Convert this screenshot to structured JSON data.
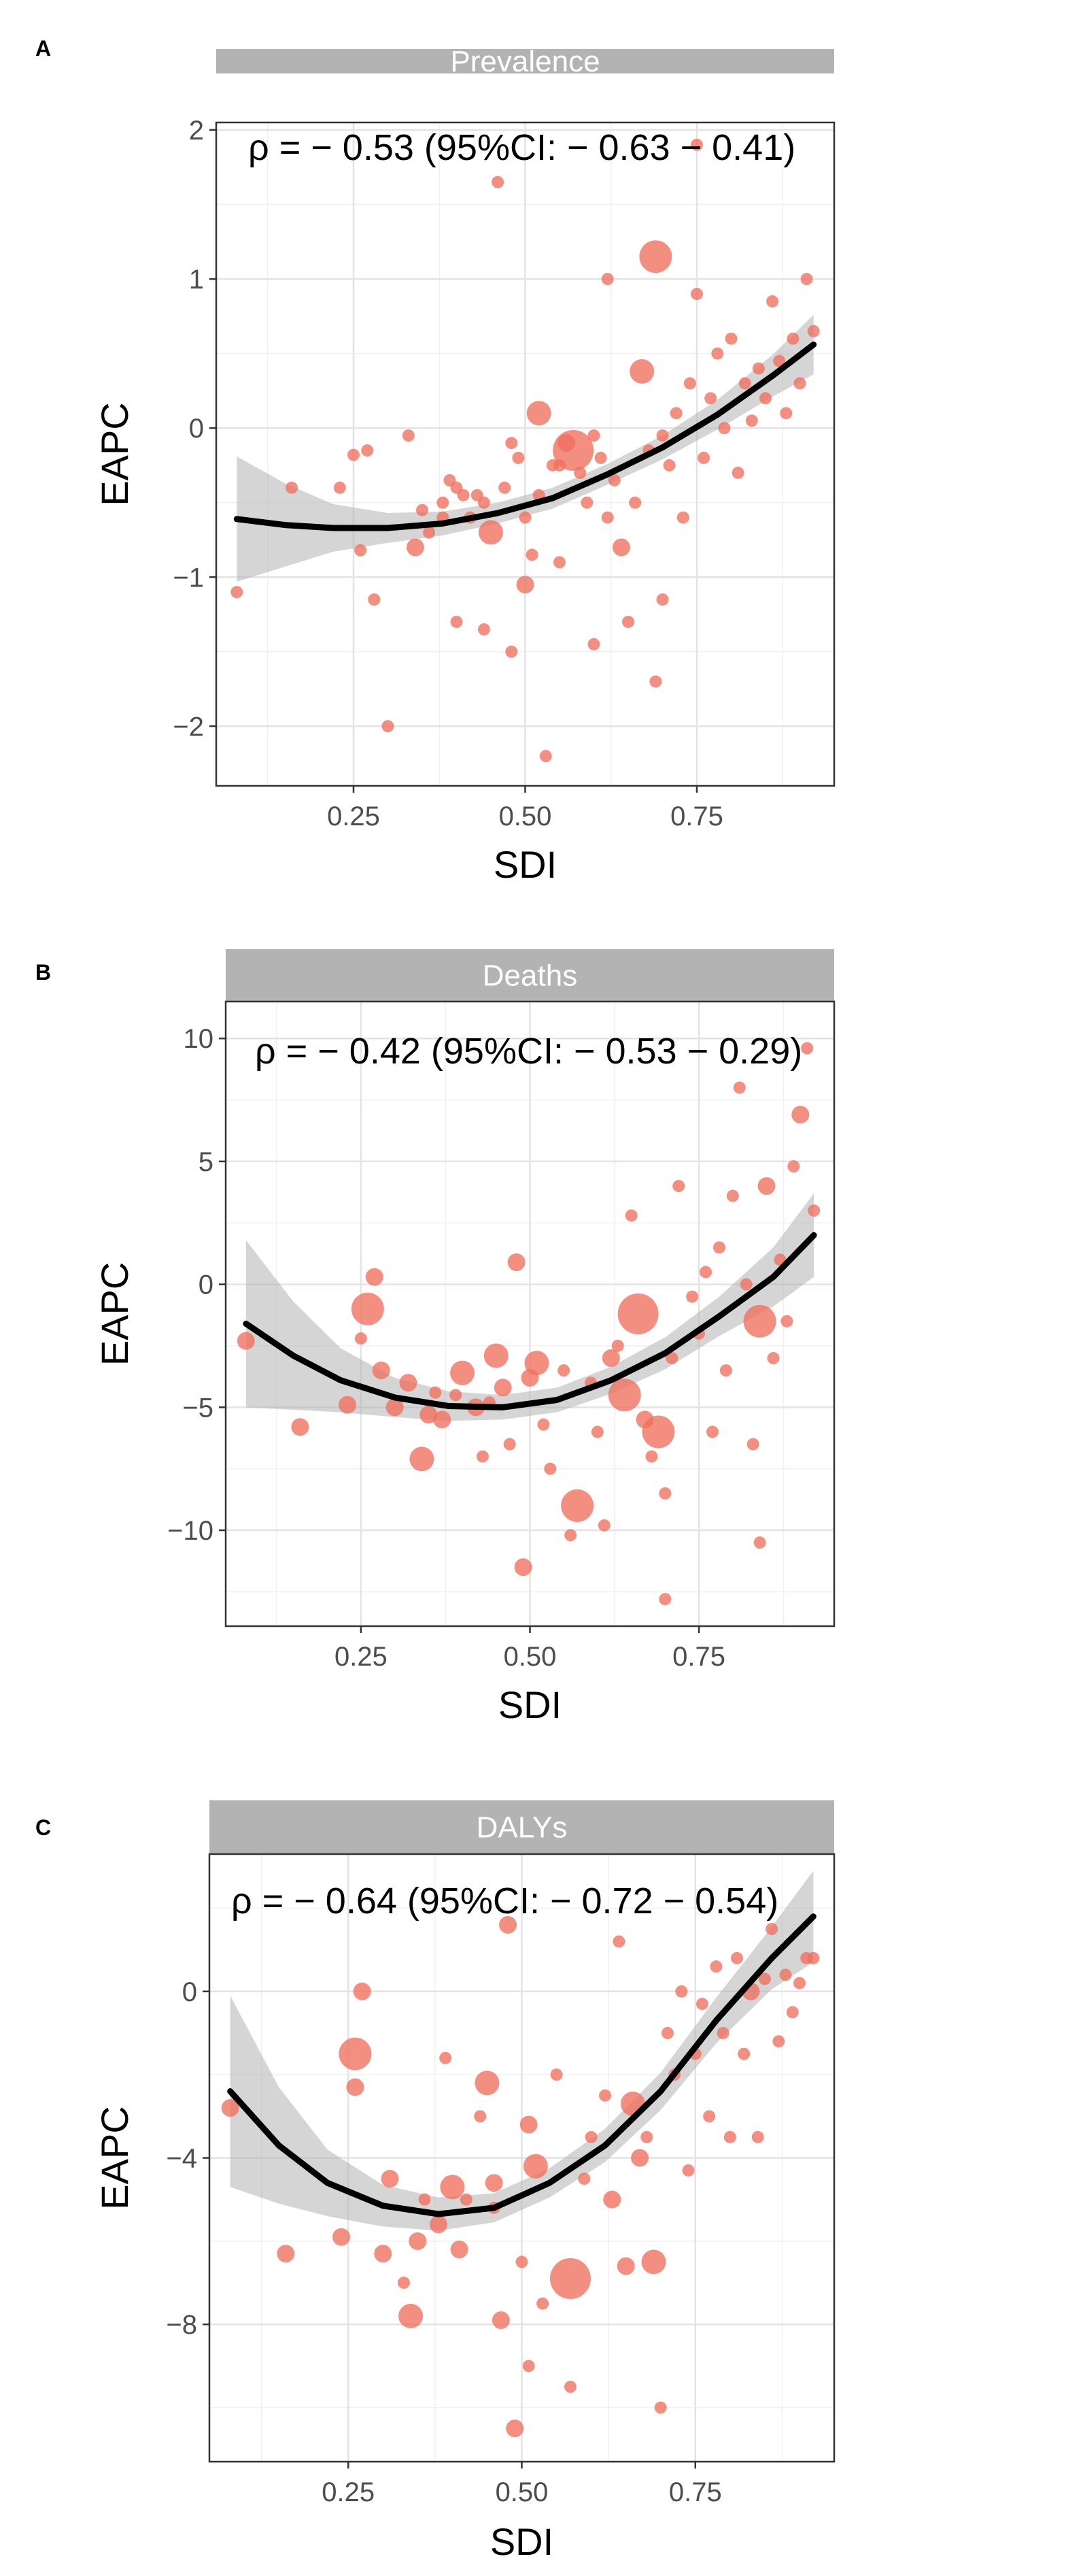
{
  "chart_data": [
    {
      "type": "scatter",
      "panel_label": "A",
      "title": "Prevalence",
      "annotation": "ρ = − 0.53 (95%CI: − 0.63 − 0.41)",
      "xlabel": "SDI",
      "ylabel": "EAPC",
      "xlim": [
        0.05,
        0.95
      ],
      "ylim": [
        -2.4,
        2.05
      ],
      "x_ticks": [
        0.25,
        0.5,
        0.75
      ],
      "x_tick_labels": [
        "0.25",
        "0.50",
        "0.75"
      ],
      "y_ticks": [
        2,
        1,
        0,
        -1,
        -2
      ],
      "y_tick_labels": [
        "2",
        "1",
        "0",
        "−1",
        "−2"
      ],
      "point_color": "#ef6f5e",
      "fit_color": "#000000",
      "band_color": "#b3b3b3",
      "points": [
        [
          0.08,
          -1.1,
          2
        ],
        [
          0.16,
          -0.4,
          2
        ],
        [
          0.23,
          -0.4,
          2
        ],
        [
          0.25,
          -0.18,
          2
        ],
        [
          0.27,
          -0.15,
          2
        ],
        [
          0.26,
          -0.82,
          2
        ],
        [
          0.28,
          -1.15,
          2
        ],
        [
          0.3,
          -2.0,
          2
        ],
        [
          0.33,
          -0.05,
          2
        ],
        [
          0.34,
          -0.8,
          3
        ],
        [
          0.35,
          -0.55,
          2
        ],
        [
          0.36,
          -0.7,
          2
        ],
        [
          0.38,
          -0.5,
          2
        ],
        [
          0.39,
          -0.35,
          2
        ],
        [
          0.4,
          -0.4,
          2
        ],
        [
          0.4,
          -1.3,
          2
        ],
        [
          0.42,
          -0.6,
          2
        ],
        [
          0.43,
          -0.45,
          2
        ],
        [
          0.44,
          -1.35,
          2
        ],
        [
          0.45,
          -0.7,
          4
        ],
        [
          0.46,
          1.65,
          2
        ],
        [
          0.47,
          -0.4,
          2
        ],
        [
          0.48,
          -1.5,
          2
        ],
        [
          0.49,
          -0.2,
          2
        ],
        [
          0.5,
          -1.05,
          3
        ],
        [
          0.5,
          -0.6,
          2
        ],
        [
          0.51,
          -0.85,
          2
        ],
        [
          0.52,
          0.1,
          4
        ],
        [
          0.52,
          -0.45,
          2
        ],
        [
          0.53,
          -2.2,
          2
        ],
        [
          0.54,
          -0.25,
          2
        ],
        [
          0.55,
          -0.9,
          2
        ],
        [
          0.56,
          -0.1,
          3
        ],
        [
          0.57,
          -0.15,
          6
        ],
        [
          0.58,
          -0.3,
          2
        ],
        [
          0.59,
          -0.5,
          2
        ],
        [
          0.6,
          -0.05,
          2
        ],
        [
          0.61,
          -0.2,
          2
        ],
        [
          0.62,
          -0.6,
          2
        ],
        [
          0.63,
          -0.35,
          2
        ],
        [
          0.64,
          -0.8,
          3
        ],
        [
          0.65,
          -1.3,
          2
        ],
        [
          0.66,
          -0.5,
          2
        ],
        [
          0.67,
          0.38,
          4
        ],
        [
          0.68,
          -0.15,
          2
        ],
        [
          0.69,
          1.15,
          5
        ],
        [
          0.7,
          -0.05,
          2
        ],
        [
          0.7,
          -1.15,
          2
        ],
        [
          0.71,
          -0.25,
          2
        ],
        [
          0.72,
          0.1,
          2
        ],
        [
          0.73,
          -0.6,
          2
        ],
        [
          0.74,
          0.3,
          2
        ],
        [
          0.75,
          0.9,
          2
        ],
        [
          0.76,
          -0.2,
          2
        ],
        [
          0.77,
          0.2,
          2
        ],
        [
          0.78,
          0.5,
          2
        ],
        [
          0.79,
          0.0,
          2
        ],
        [
          0.8,
          0.6,
          2
        ],
        [
          0.81,
          -0.3,
          2
        ],
        [
          0.82,
          0.3,
          2
        ],
        [
          0.83,
          0.05,
          2
        ],
        [
          0.84,
          0.4,
          2
        ],
        [
          0.85,
          0.2,
          2
        ],
        [
          0.86,
          0.85,
          2
        ],
        [
          0.87,
          0.45,
          2
        ],
        [
          0.88,
          0.1,
          2
        ],
        [
          0.89,
          0.6,
          2
        ],
        [
          0.9,
          0.3,
          2
        ],
        [
          0.91,
          1.0,
          2
        ],
        [
          0.92,
          0.65,
          2
        ],
        [
          0.75,
          1.9,
          2
        ],
        [
          0.62,
          1.0,
          2
        ],
        [
          0.69,
          -1.7,
          2
        ],
        [
          0.6,
          -1.45,
          2
        ],
        [
          0.55,
          -0.25,
          2
        ],
        [
          0.48,
          -0.1,
          2
        ],
        [
          0.44,
          -0.5,
          2
        ],
        [
          0.41,
          -0.45,
          2
        ],
        [
          0.38,
          -0.6,
          2
        ]
      ],
      "fit_x": [
        0.08,
        0.15,
        0.22,
        0.3,
        0.38,
        0.46,
        0.54,
        0.62,
        0.7,
        0.78,
        0.86,
        0.92
      ],
      "fit_y": [
        -0.61,
        -0.65,
        -0.67,
        -0.67,
        -0.64,
        -0.57,
        -0.47,
        -0.31,
        -0.13,
        0.09,
        0.35,
        0.56
      ],
      "band_width": [
        0.42,
        0.28,
        0.16,
        0.1,
        0.08,
        0.07,
        0.07,
        0.07,
        0.08,
        0.1,
        0.14,
        0.2
      ]
    },
    {
      "type": "scatter",
      "panel_label": "B",
      "title": "Deaths",
      "annotation": "ρ = − 0.42 (95%CI: − 0.53 − 0.29)",
      "xlabel": "SDI",
      "ylabel": "EAPC",
      "xlim": [
        0.05,
        0.95
      ],
      "ylim": [
        -13.9,
        11.5
      ],
      "x_ticks": [
        0.25,
        0.5,
        0.75
      ],
      "x_tick_labels": [
        "0.25",
        "0.50",
        "0.75"
      ],
      "y_ticks": [
        10,
        5,
        0,
        -5,
        -10
      ],
      "y_tick_labels": [
        "10",
        "5",
        "0",
        "−5",
        "−10"
      ],
      "point_color": "#ef6f5e",
      "fit_color": "#000000",
      "band_color": "#b3b3b3",
      "points": [
        [
          0.08,
          -2.3,
          3
        ],
        [
          0.16,
          -5.8,
          3
        ],
        [
          0.23,
          -4.9,
          3
        ],
        [
          0.25,
          -2.2,
          2
        ],
        [
          0.26,
          -1.0,
          5
        ],
        [
          0.27,
          0.3,
          3
        ],
        [
          0.28,
          -3.5,
          3
        ],
        [
          0.3,
          -5.0,
          3
        ],
        [
          0.32,
          -4.0,
          3
        ],
        [
          0.34,
          -7.1,
          4
        ],
        [
          0.35,
          -5.3,
          3
        ],
        [
          0.37,
          -5.5,
          3
        ],
        [
          0.39,
          -4.5,
          2
        ],
        [
          0.4,
          -3.6,
          4
        ],
        [
          0.42,
          -5.0,
          3
        ],
        [
          0.43,
          -7.0,
          2
        ],
        [
          0.45,
          -2.9,
          4
        ],
        [
          0.46,
          -4.2,
          3
        ],
        [
          0.47,
          -6.5,
          2
        ],
        [
          0.48,
          0.9,
          3
        ],
        [
          0.49,
          -11.5,
          3
        ],
        [
          0.5,
          -3.8,
          3
        ],
        [
          0.51,
          -3.2,
          4
        ],
        [
          0.52,
          -5.7,
          2
        ],
        [
          0.53,
          -7.5,
          2
        ],
        [
          0.55,
          -3.5,
          2
        ],
        [
          0.56,
          -10.2,
          2
        ],
        [
          0.57,
          -9.0,
          5
        ],
        [
          0.59,
          -4.0,
          2
        ],
        [
          0.6,
          -6.0,
          2
        ],
        [
          0.62,
          -3.0,
          3
        ],
        [
          0.63,
          -2.5,
          2
        ],
        [
          0.64,
          -4.5,
          5
        ],
        [
          0.65,
          2.8,
          2
        ],
        [
          0.66,
          -1.2,
          6
        ],
        [
          0.67,
          -5.5,
          3
        ],
        [
          0.68,
          -7.0,
          2
        ],
        [
          0.69,
          -6.0,
          5
        ],
        [
          0.7,
          -8.5,
          2
        ],
        [
          0.7,
          -12.8,
          2
        ],
        [
          0.71,
          -3.0,
          2
        ],
        [
          0.72,
          4.0,
          2
        ],
        [
          0.74,
          -0.5,
          2
        ],
        [
          0.75,
          -2.0,
          2
        ],
        [
          0.76,
          0.5,
          2
        ],
        [
          0.77,
          -6.0,
          2
        ],
        [
          0.78,
          1.5,
          2
        ],
        [
          0.79,
          -3.5,
          2
        ],
        [
          0.8,
          3.6,
          2
        ],
        [
          0.81,
          8.0,
          2
        ],
        [
          0.82,
          0.0,
          2
        ],
        [
          0.83,
          -6.5,
          2
        ],
        [
          0.84,
          -1.5,
          5
        ],
        [
          0.85,
          4.0,
          3
        ],
        [
          0.86,
          -3.0,
          2
        ],
        [
          0.87,
          1.0,
          2
        ],
        [
          0.88,
          -1.5,
          2
        ],
        [
          0.89,
          4.8,
          2
        ],
        [
          0.9,
          6.9,
          3
        ],
        [
          0.91,
          9.6,
          2
        ],
        [
          0.92,
          3.0,
          2
        ],
        [
          0.84,
          -10.5,
          2
        ],
        [
          0.61,
          -9.8,
          2
        ],
        [
          0.44,
          -4.8,
          2
        ],
        [
          0.36,
          -4.4,
          2
        ]
      ],
      "fit_x": [
        0.08,
        0.15,
        0.22,
        0.3,
        0.38,
        0.46,
        0.54,
        0.62,
        0.7,
        0.78,
        0.86,
        0.92
      ],
      "fit_y": [
        -1.6,
        -2.9,
        -3.9,
        -4.6,
        -4.95,
        -5.0,
        -4.7,
        -3.9,
        -2.8,
        -1.3,
        0.3,
        2.0
      ],
      "band_width": [
        3.4,
        2.2,
        1.3,
        0.8,
        0.6,
        0.5,
        0.5,
        0.55,
        0.65,
        0.8,
        1.2,
        1.7
      ]
    },
    {
      "type": "scatter",
      "panel_label": "C",
      "title": "DALYs",
      "annotation": "ρ = − 0.64 (95%CI: − 0.72 − 0.54)",
      "xlabel": "SDI",
      "ylabel": "EAPC",
      "xlim": [
        0.05,
        0.95
      ],
      "ylim": [
        -11.3,
        3.3
      ],
      "x_ticks": [
        0.25,
        0.5,
        0.75
      ],
      "x_tick_labels": [
        "0.25",
        "0.50",
        "0.75"
      ],
      "y_ticks": [
        0,
        -4,
        -8
      ],
      "y_tick_labels": [
        "0",
        "−4",
        "−8"
      ],
      "point_color": "#ef6f5e",
      "fit_color": "#000000",
      "band_color": "#b3b3b3",
      "points": [
        [
          0.08,
          -2.8,
          3
        ],
        [
          0.16,
          -6.3,
          3
        ],
        [
          0.24,
          -5.9,
          3
        ],
        [
          0.26,
          -2.3,
          3
        ],
        [
          0.26,
          -1.5,
          5
        ],
        [
          0.27,
          0.0,
          3
        ],
        [
          0.3,
          -6.3,
          3
        ],
        [
          0.31,
          -4.5,
          3
        ],
        [
          0.34,
          -7.8,
          4
        ],
        [
          0.35,
          -6.0,
          3
        ],
        [
          0.36,
          -5.0,
          2
        ],
        [
          0.38,
          -5.6,
          3
        ],
        [
          0.39,
          -1.6,
          2
        ],
        [
          0.4,
          -4.7,
          4
        ],
        [
          0.41,
          -6.2,
          3
        ],
        [
          0.42,
          -5.0,
          2
        ],
        [
          0.44,
          -3.0,
          2
        ],
        [
          0.45,
          -2.2,
          4
        ],
        [
          0.46,
          -4.6,
          3
        ],
        [
          0.47,
          -7.9,
          3
        ],
        [
          0.48,
          1.6,
          3
        ],
        [
          0.49,
          -10.5,
          3
        ],
        [
          0.5,
          -6.5,
          2
        ],
        [
          0.51,
          -3.2,
          3
        ],
        [
          0.52,
          -4.2,
          4
        ],
        [
          0.53,
          -7.5,
          2
        ],
        [
          0.55,
          -2.0,
          2
        ],
        [
          0.57,
          -6.9,
          6
        ],
        [
          0.59,
          -4.5,
          2
        ],
        [
          0.6,
          -3.5,
          2
        ],
        [
          0.62,
          -2.5,
          2
        ],
        [
          0.63,
          -5.0,
          3
        ],
        [
          0.64,
          1.2,
          2
        ],
        [
          0.65,
          -6.6,
          3
        ],
        [
          0.66,
          -2.7,
          4
        ],
        [
          0.67,
          -4.0,
          3
        ],
        [
          0.68,
          -3.5,
          2
        ],
        [
          0.69,
          -6.5,
          4
        ],
        [
          0.7,
          -10.0,
          2
        ],
        [
          0.71,
          -1.0,
          2
        ],
        [
          0.72,
          -2.0,
          2
        ],
        [
          0.73,
          0.0,
          2
        ],
        [
          0.74,
          -4.3,
          2
        ],
        [
          0.75,
          -1.5,
          2
        ],
        [
          0.76,
          -0.3,
          2
        ],
        [
          0.77,
          -3.0,
          2
        ],
        [
          0.78,
          0.6,
          2
        ],
        [
          0.79,
          -1.0,
          2
        ],
        [
          0.8,
          -3.5,
          2
        ],
        [
          0.81,
          0.8,
          2
        ],
        [
          0.82,
          -1.5,
          2
        ],
        [
          0.83,
          0.0,
          3
        ],
        [
          0.84,
          -3.5,
          2
        ],
        [
          0.85,
          0.3,
          2
        ],
        [
          0.86,
          1.5,
          2
        ],
        [
          0.87,
          -1.2,
          2
        ],
        [
          0.88,
          0.4,
          2
        ],
        [
          0.89,
          -0.5,
          2
        ],
        [
          0.9,
          0.2,
          2
        ],
        [
          0.91,
          0.8,
          2
        ],
        [
          0.92,
          0.8,
          2
        ],
        [
          0.57,
          -9.5,
          2
        ],
        [
          0.51,
          -9.0,
          2
        ],
        [
          0.46,
          -5.2,
          2
        ],
        [
          0.33,
          -7.0,
          2
        ]
      ],
      "fit_x": [
        0.08,
        0.15,
        0.22,
        0.3,
        0.38,
        0.46,
        0.54,
        0.62,
        0.7,
        0.78,
        0.86,
        0.92
      ],
      "fit_y": [
        -2.4,
        -3.7,
        -4.6,
        -5.15,
        -5.35,
        -5.2,
        -4.6,
        -3.7,
        -2.4,
        -0.7,
        0.8,
        1.8
      ],
      "band_width": [
        2.3,
        1.4,
        0.8,
        0.5,
        0.4,
        0.35,
        0.35,
        0.4,
        0.45,
        0.55,
        0.75,
        1.1
      ]
    }
  ]
}
